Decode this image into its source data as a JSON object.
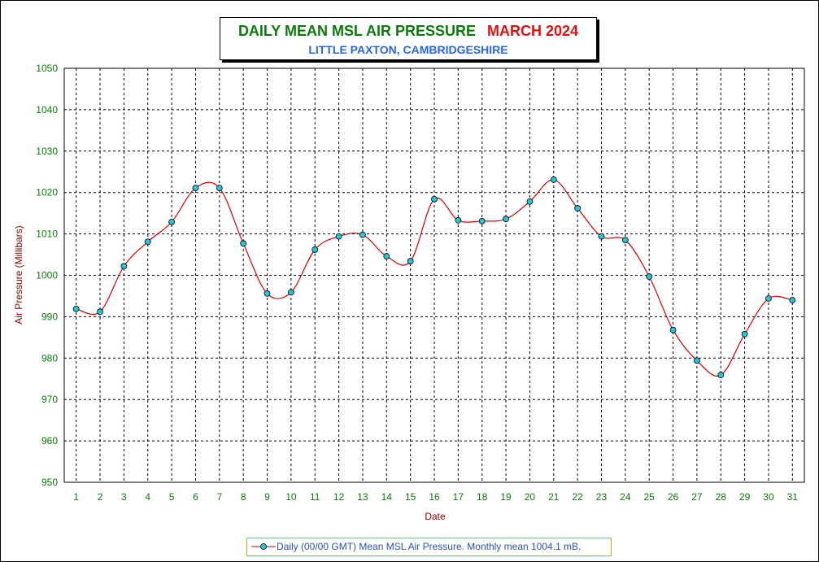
{
  "chart_data": {
    "type": "line",
    "title": "DAILY MEAN MSL AIR PRESSURE",
    "title_date": "MARCH 2024",
    "subtitle": "LITTLE PAXTON, CAMBRIDGESHIRE",
    "xlabel": "Date",
    "ylabel": "Air Pressure (Millibars)",
    "ylim": [
      950,
      1050
    ],
    "y_ticks": [
      950,
      960,
      970,
      980,
      990,
      1000,
      1010,
      1020,
      1030,
      1040,
      1050
    ],
    "x": [
      1,
      2,
      3,
      4,
      5,
      6,
      7,
      8,
      9,
      10,
      11,
      12,
      13,
      14,
      15,
      16,
      17,
      18,
      19,
      20,
      21,
      22,
      23,
      24,
      25,
      26,
      27,
      28,
      29,
      30,
      31
    ],
    "grid": true,
    "legend_position": "bottom-center",
    "series": [
      {
        "name": "Daily (00/00 GMT) Mean MSL Air Pressure. Monthly mean 1004.1 mB.",
        "values": [
          991.9,
          991.2,
          1002.2,
          1008.1,
          1012.9,
          1021.1,
          1021.1,
          1007.7,
          995.6,
          995.9,
          1006.2,
          1009.4,
          1009.8,
          1004.6,
          1003.4,
          1018.4,
          1013.3,
          1013.1,
          1013.6,
          1017.8,
          1023.1,
          1016.2,
          1009.4,
          1008.5,
          999.7,
          986.8,
          979.4,
          975.9,
          985.8,
          994.4,
          994.0
        ]
      }
    ],
    "colors": {
      "line": "#d40000",
      "marker_fill": "#20c8d8",
      "grid": "#000000",
      "tick_labels": "#0a7a0a",
      "axis_title": "#8b0000",
      "legend_text": "#2a52be",
      "legend_border": "#e8a000"
    }
  }
}
